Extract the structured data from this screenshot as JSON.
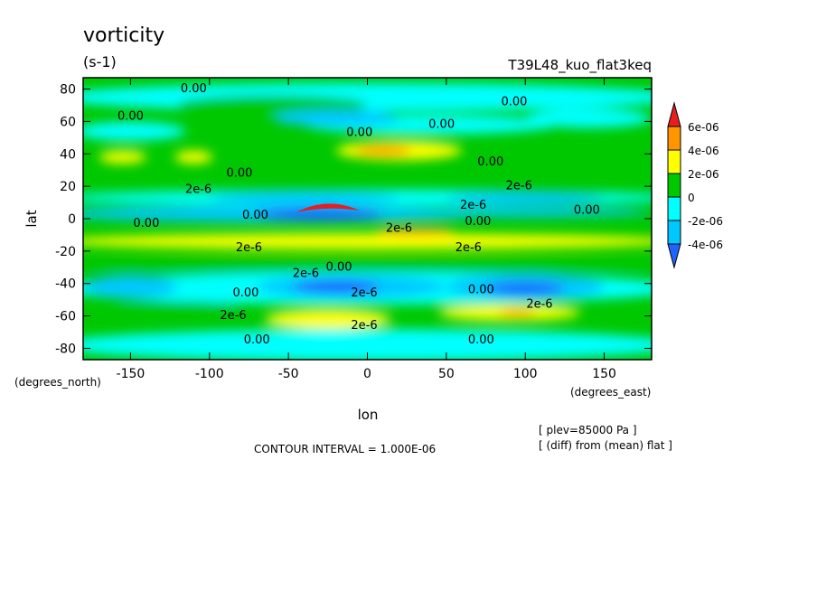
{
  "chart_data": {
    "type": "heatmap",
    "title": "vorticity",
    "units": "(s-1)",
    "experiment": "T39L48_kuo_flat3keq",
    "xlabel": "lon",
    "ylabel": "lat",
    "x_units": "(degrees_east)",
    "y_units": "(degrees_north)",
    "xlim": [
      -180,
      180
    ],
    "ylim": [
      -87,
      87
    ],
    "x_ticks": [
      -150,
      -100,
      -50,
      0,
      50,
      100,
      150
    ],
    "y_ticks": [
      -80,
      -60,
      -40,
      -20,
      0,
      20,
      40,
      60,
      80
    ],
    "x_tick_labels": [
      "-150",
      "-100",
      "-50",
      "0",
      "50",
      "100",
      "150"
    ],
    "y_tick_labels": [
      "-80",
      "-60",
      "-40",
      "-20",
      "0",
      "20",
      "40",
      "60",
      "80"
    ],
    "levels": [
      -6e-06,
      -4e-06,
      -2e-06,
      0,
      2e-06,
      4e-06,
      6e-06
    ],
    "colorbar_labels": [
      "6e-06",
      "4e-06",
      "2e-06",
      "0",
      "-2e-06",
      "-4e-06"
    ],
    "colors": [
      "#1e64ff",
      "#00c8ff",
      "#00ffff",
      "#00c800",
      "#ffff00",
      "#ff9600",
      "#e61e1e"
    ],
    "contour_interval_text": "CONTOUR INTERVAL = 1.000E-06",
    "notes": [
      "[ plev=85000 Pa ]",
      "[ (diff) from (mean) flat ]"
    ],
    "contour_labels": [
      {
        "text": "0.00",
        "lon": -110,
        "lat": 78
      },
      {
        "text": "0.00",
        "lon": -150,
        "lat": 61
      },
      {
        "text": "0.00",
        "lon": -5,
        "lat": 51
      },
      {
        "text": "0.00",
        "lon": 47,
        "lat": 56
      },
      {
        "text": "0.00",
        "lon": 93,
        "lat": 70
      },
      {
        "text": "0.00",
        "lon": 78,
        "lat": 33
      },
      {
        "text": "0.00",
        "lon": -81,
        "lat": 26
      },
      {
        "text": "2e-6",
        "lon": -107,
        "lat": 16
      },
      {
        "text": "2e-6",
        "lon": 96,
        "lat": 18
      },
      {
        "text": "0.00",
        "lon": -71,
        "lat": 0
      },
      {
        "text": "0.00",
        "lon": -140,
        "lat": -5
      },
      {
        "text": "2e-6",
        "lon": 67,
        "lat": 6
      },
      {
        "text": "0.00",
        "lon": 70,
        "lat": -4
      },
      {
        "text": "0.00",
        "lon": 139,
        "lat": 3
      },
      {
        "text": "2e-6",
        "lon": 20,
        "lat": -8
      },
      {
        "text": "2e-6",
        "lon": -75,
        "lat": -20
      },
      {
        "text": "2e-6",
        "lon": 64,
        "lat": -20
      },
      {
        "text": "2e-6",
        "lon": -39,
        "lat": -36
      },
      {
        "text": "0.00",
        "lon": -18,
        "lat": -32
      },
      {
        "text": "2e-6",
        "lon": -2,
        "lat": -48
      },
      {
        "text": "0.00",
        "lon": 72,
        "lat": -46
      },
      {
        "text": "0.00",
        "lon": -77,
        "lat": -48
      },
      {
        "text": "2e-6",
        "lon": 109,
        "lat": -55
      },
      {
        "text": "2e-6",
        "lon": -85,
        "lat": -62
      },
      {
        "text": "2e-6",
        "lon": -2,
        "lat": -68
      },
      {
        "text": "0.00",
        "lon": -70,
        "lat": -77
      },
      {
        "text": "0.00",
        "lon": 72,
        "lat": -77
      }
    ]
  }
}
